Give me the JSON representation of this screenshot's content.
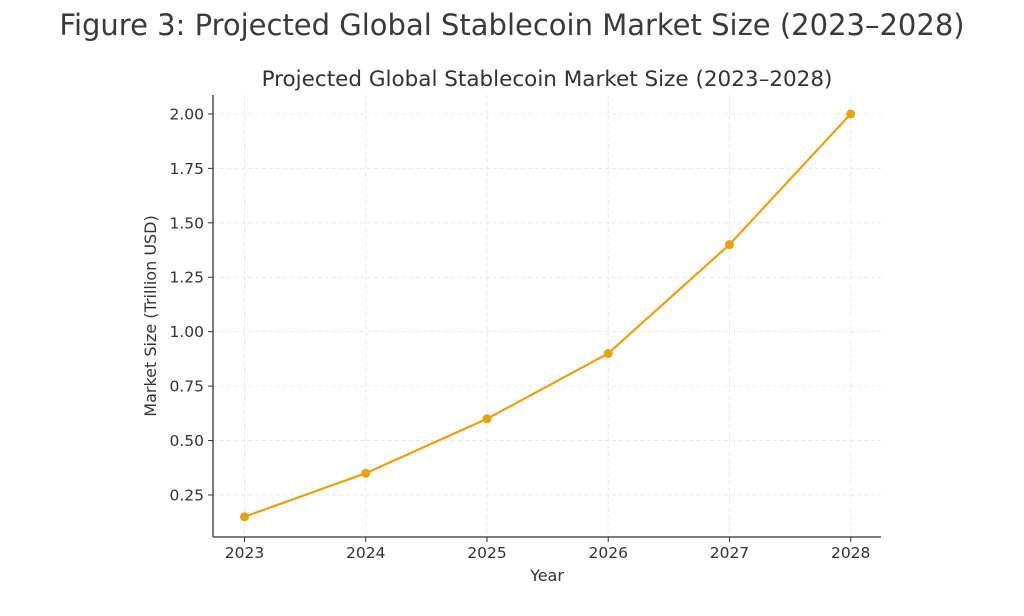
{
  "figure_title": "Figure 3: Projected Global Stablecoin Market Size (2023–2028)",
  "chart_data": {
    "type": "line",
    "title": "Projected Global Stablecoin Market Size (2023–2028)",
    "xlabel": "Year",
    "ylabel": "Market Size (Trillion USD)",
    "x": [
      2023,
      2024,
      2025,
      2026,
      2027,
      2028
    ],
    "x_tick_labels": [
      "2023",
      "2024",
      "2025",
      "2026",
      "2027",
      "2028"
    ],
    "series": [
      {
        "name": "Market Size",
        "values": [
          0.15,
          0.35,
          0.6,
          0.9,
          1.4,
          2.0
        ],
        "color": "#E8A20F",
        "marker": "circle"
      }
    ],
    "y_ticks": [
      0.25,
      0.5,
      0.75,
      1.0,
      1.25,
      1.5,
      1.75,
      2.0
    ],
    "y_tick_labels": [
      "0.25",
      "0.50",
      "0.75",
      "1.00",
      "1.25",
      "1.50",
      "1.75",
      "2.00"
    ],
    "xlim": [
      2022.74,
      2028.25
    ],
    "ylim": [
      0.057,
      2.087
    ],
    "grid": true,
    "legend": "none"
  }
}
